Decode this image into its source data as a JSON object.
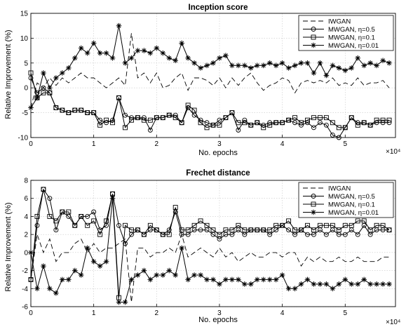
{
  "chart_data": [
    {
      "type": "line",
      "title": "Inception score",
      "xlabel": "No. epochs",
      "ylabel": "Relative Improvement (%)",
      "x_multiplier_label": "×10⁴",
      "xlim": [
        0,
        58000
      ],
      "ylim": [
        -10,
        15
      ],
      "xticks": [
        "0",
        "1",
        "2",
        "3",
        "4",
        "5"
      ],
      "yticks": [
        "-10",
        "-5",
        "0",
        "5",
        "10",
        "15"
      ],
      "grid": true,
      "legend_position": "top-right",
      "x": [
        0,
        1000,
        2000,
        3000,
        4000,
        5000,
        6000,
        7000,
        8000,
        9000,
        10000,
        11000,
        12000,
        13000,
        14000,
        15000,
        16000,
        17000,
        18000,
        19000,
        20000,
        21000,
        22000,
        23000,
        24000,
        25000,
        26000,
        27000,
        28000,
        29000,
        30000,
        31000,
        32000,
        33000,
        34000,
        35000,
        36000,
        37000,
        38000,
        39000,
        40000,
        41000,
        42000,
        43000,
        44000,
        45000,
        46000,
        47000,
        48000,
        49000,
        50000,
        51000,
        52000,
        53000,
        54000,
        55000,
        56000,
        57000
      ],
      "series": [
        {
          "name": "IWGAN",
          "line": "dashed",
          "marker": "none",
          "values": [
            -4,
            1,
            0,
            2,
            0.5,
            2,
            1,
            2,
            3,
            2,
            2,
            1,
            0,
            1,
            2,
            0.5,
            11,
            2,
            3,
            1,
            3,
            0,
            0.5,
            2,
            3,
            -0.5,
            2,
            2,
            1.5,
            0.5,
            2,
            0,
            2,
            0.5,
            2,
            3,
            1,
            -0.5,
            0.5,
            1,
            2,
            1.5,
            -1,
            1,
            1.5,
            1,
            1.5,
            1,
            2,
            0.5,
            1,
            0.5,
            2,
            0.5,
            1,
            1,
            1.5,
            0
          ]
        },
        {
          "name": "MWGAN, η=0.5",
          "line": "solid",
          "marker": "circle",
          "values": [
            2,
            -1,
            0,
            -1,
            -4,
            -4.5,
            -5,
            -4.5,
            -4.5,
            -5,
            -5,
            -6.5,
            -7,
            -6.5,
            -2,
            -5.5,
            -6,
            -6,
            -6,
            -8.5,
            -6,
            -6,
            -5.5,
            -5.5,
            -7,
            -4,
            -5.5,
            -6.5,
            -7,
            -7.5,
            -6.5,
            -6,
            -5,
            -8.5,
            -6.5,
            -7.5,
            -7,
            -7.5,
            -7,
            -7,
            -7,
            -6.5,
            -7,
            -7.5,
            -7,
            -8,
            -7,
            -7.5,
            -9.5,
            -10,
            -8,
            -6,
            -7,
            -7,
            -7.5,
            -7,
            -7,
            -7
          ]
        },
        {
          "name": "MWGAN, η=0.1",
          "line": "solid",
          "marker": "square",
          "values": [
            3,
            -2,
            -1,
            -1,
            -4,
            -4.5,
            -5,
            -4.5,
            -4.5,
            -5,
            -5,
            -7.5,
            -6.5,
            -7,
            -2,
            -8,
            -6.5,
            -6,
            -6.5,
            -6.5,
            -6,
            -6,
            -5.5,
            -6,
            -7,
            -3.5,
            -4.5,
            -7,
            -8,
            -7.5,
            -7.5,
            -6,
            -5,
            -7,
            -7,
            -7.5,
            -7,
            -8,
            -7.5,
            -7,
            -7,
            -6.5,
            -6,
            -7,
            -6.5,
            -6,
            -6,
            -6,
            -7,
            -8,
            -8,
            -6,
            -7.5,
            -7,
            -7.5,
            -6.5,
            -6.5,
            -6.5
          ]
        },
        {
          "name": "MWGAN, η=0.01",
          "line": "solid",
          "marker": "star",
          "values": [
            -4,
            -2,
            3,
            0,
            2,
            3,
            4,
            6,
            8,
            7,
            9,
            7,
            7,
            6,
            12.5,
            5,
            6,
            7.5,
            7.5,
            7,
            8,
            7,
            6,
            5.5,
            9,
            6,
            5,
            4,
            4.5,
            5,
            6,
            6.5,
            4.5,
            4.5,
            4.5,
            4,
            4.5,
            4.5,
            5,
            4.5,
            5,
            4,
            4.5,
            5,
            5,
            3,
            5,
            2.5,
            4.5,
            4,
            3.5,
            4,
            6,
            4.5,
            5,
            4.5,
            5.5,
            5
          ]
        }
      ]
    },
    {
      "type": "line",
      "title": "Frechet distance",
      "xlabel": "No. epochs",
      "ylabel": "Relative Improvement (%)",
      "x_multiplier_label": "×10⁴",
      "xlim": [
        0,
        58000
      ],
      "ylim": [
        -6,
        8
      ],
      "xticks": [
        "0",
        "1",
        "2",
        "3",
        "4",
        "5"
      ],
      "yticks": [
        "-6",
        "-4",
        "-2",
        "0",
        "2",
        "4",
        "6",
        "8"
      ],
      "grid": true,
      "legend_position": "top-right",
      "x": [
        0,
        1000,
        2000,
        3000,
        4000,
        5000,
        6000,
        7000,
        8000,
        9000,
        10000,
        11000,
        12000,
        13000,
        14000,
        15000,
        16000,
        17000,
        18000,
        19000,
        20000,
        21000,
        22000,
        23000,
        24000,
        25000,
        26000,
        27000,
        28000,
        29000,
        30000,
        31000,
        32000,
        33000,
        34000,
        35000,
        36000,
        37000,
        38000,
        39000,
        40000,
        41000,
        42000,
        43000,
        44000,
        45000,
        46000,
        47000,
        48000,
        49000,
        50000,
        51000,
        52000,
        53000,
        54000,
        55000,
        56000,
        57000
      ],
      "series": [
        {
          "name": "IWGAN",
          "line": "dashed",
          "marker": "none",
          "values": [
            -3,
            2,
            0,
            1.5,
            -1,
            0,
            0,
            1,
            1.5,
            0,
            1,
            0,
            0.5,
            0.5,
            1,
            1.5,
            -5.5,
            0.5,
            0.5,
            -0.5,
            0,
            0,
            0.5,
            0,
            2,
            -0.5,
            0,
            0.5,
            0,
            -0.5,
            0.5,
            -0.5,
            0,
            -1,
            -0.5,
            0,
            -0.5,
            -0.5,
            0,
            0,
            -0.5,
            0,
            0,
            -1.5,
            -0.5,
            -1,
            -0.5,
            -1,
            -1,
            -0.5,
            -1,
            -1,
            -0.5,
            -1,
            -1,
            -1,
            -0.5,
            -0.5
          ]
        },
        {
          "name": "MWGAN, η=0.5",
          "line": "solid",
          "marker": "circle",
          "values": [
            -3,
            3,
            7,
            6,
            2.5,
            4.5,
            4,
            3,
            4,
            4,
            4.5,
            2.5,
            3,
            6.5,
            3,
            1,
            2,
            2.5,
            2,
            2.5,
            2.5,
            2,
            2.5,
            4.5,
            2,
            2,
            2.5,
            2.5,
            2.5,
            2,
            1.5,
            2,
            2,
            2.5,
            2,
            2.5,
            2.5,
            2.5,
            2,
            2.5,
            3,
            2.5,
            2,
            2.5,
            2,
            2,
            2.5,
            2,
            2.5,
            2,
            2,
            2.5,
            2,
            3,
            2,
            2.5,
            2.5,
            2.5
          ]
        },
        {
          "name": "MWGAN, η=0.1",
          "line": "solid",
          "marker": "square",
          "values": [
            -3,
            4,
            7,
            4,
            3.5,
            4.5,
            4.5,
            3,
            4,
            3,
            3.5,
            2,
            3.5,
            6.5,
            -5,
            3,
            2.5,
            2.5,
            2,
            3,
            2.5,
            2,
            2,
            5,
            2.5,
            2.5,
            3,
            3.5,
            3,
            2.5,
            2,
            2.5,
            2.5,
            3,
            2.5,
            2.5,
            2.5,
            2.5,
            2.5,
            3,
            3,
            3.5,
            2.5,
            2.5,
            3,
            2.5,
            3,
            3,
            3,
            2.5,
            3,
            3,
            3.5,
            3.5,
            2.5,
            3,
            3,
            2.5
          ]
        },
        {
          "name": "MWGAN, η=0.01",
          "line": "solid",
          "marker": "star",
          "values": [
            0,
            -4,
            -1.5,
            -4,
            -4.5,
            -3,
            -3,
            -2,
            -2.5,
            0.5,
            -1,
            -1.5,
            -1,
            6,
            -5.5,
            -5.5,
            -3,
            -2.5,
            -2,
            -3,
            -2.5,
            -2.5,
            -2,
            -2.5,
            0.5,
            -3,
            -2.5,
            -2.5,
            -3,
            -3,
            -3.5,
            -3,
            -3,
            -3,
            -3.5,
            -3.5,
            -3,
            -3,
            -3,
            -3,
            -2.5,
            -4,
            -4,
            -3.5,
            -3,
            -3.5,
            -3.5,
            -3.5,
            -4,
            -3.5,
            -3,
            -3.5,
            -3.5,
            -3,
            -3.5,
            -3.5,
            -3.5,
            -3.5
          ]
        }
      ]
    }
  ]
}
